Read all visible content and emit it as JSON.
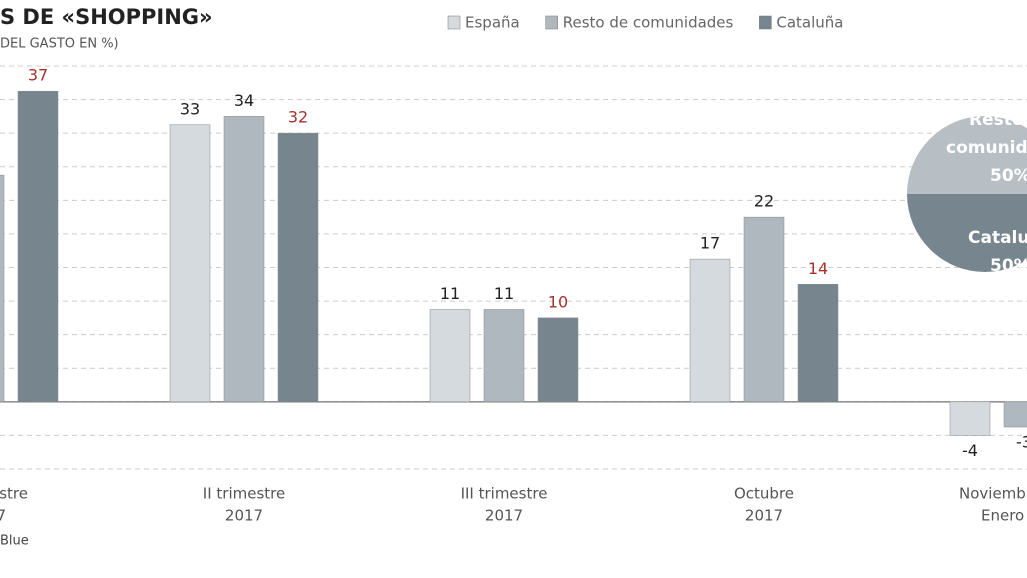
{
  "chart_data": [
    {
      "type": "bar",
      "title": "S DE «SHOPPING»",
      "subtitle": "DEL GASTO EN %)",
      "source": "Blue",
      "categories": [
        [
          "estre",
          "7"
        ],
        [
          "II trimestre",
          "2017"
        ],
        [
          "III trimestre",
          "2017"
        ],
        [
          "Octubre",
          "2017"
        ],
        [
          "Noviemb",
          "Enero"
        ]
      ],
      "series": [
        {
          "name": "España",
          "color": "#d5dadf",
          "label_color": "#222222",
          "values": [
            null,
            33,
            11,
            17,
            -4
          ]
        },
        {
          "name": "Resto de comunidades",
          "color": "#b0b8bf",
          "label_color": "#222222",
          "values": [
            27,
            34,
            11,
            22,
            -3
          ]
        },
        {
          "name": "Cataluña",
          "color": "#77858f",
          "label_color": "#a8322d",
          "values": [
            37,
            32,
            10,
            14,
            null
          ]
        }
      ],
      "ylim": [
        -8,
        40
      ],
      "yticks": [
        -8,
        -4,
        0,
        4,
        8,
        12,
        16,
        20,
        24,
        28,
        32,
        36,
        40
      ],
      "grid": true
    },
    {
      "type": "pie",
      "labels": [
        [
          "Resto",
          "comunid"
        ],
        [
          "Catalu"
        ]
      ],
      "values": [
        50,
        50
      ],
      "value_labels": [
        "50%",
        "50%"
      ],
      "colors": [
        "#b7bfc5",
        "#77858f"
      ]
    }
  ]
}
